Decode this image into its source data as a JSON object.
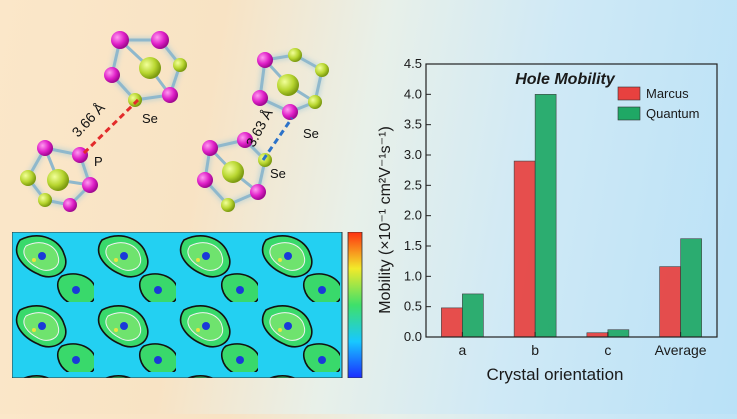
{
  "molecule_labels": {
    "left_distance": "3.66 Å",
    "left_se": "Se",
    "left_p": "P",
    "right_distance": "3.63 Å",
    "right_se_top": "Se",
    "right_se_bottom": "Se"
  },
  "colors": {
    "marcus": "#e8413f",
    "quantum": "#1fa865",
    "p_atom": "#e020c8",
    "se_atom": "#b8d630"
  },
  "chart_data": {
    "type": "bar",
    "title": "Hole Mobility",
    "xlabel": "Crystal orientation",
    "ylabel": "Mobility (×10⁻¹ cm²V⁻¹s⁻¹)",
    "categories": [
      "a",
      "b",
      "c",
      "Average"
    ],
    "series": [
      {
        "name": "Marcus",
        "values": [
          0.48,
          2.9,
          0.07,
          1.16
        ]
      },
      {
        "name": "Quantum",
        "values": [
          0.71,
          4.0,
          0.12,
          1.62
        ]
      }
    ],
    "ylim": [
      0,
      4.5
    ],
    "yticks": [
      "0.0",
      "0.5",
      "1.0",
      "1.5",
      "2.0",
      "2.5",
      "3.0",
      "3.5",
      "4.0",
      "4.5"
    ],
    "legend_position": "top-right",
    "grid": false
  }
}
